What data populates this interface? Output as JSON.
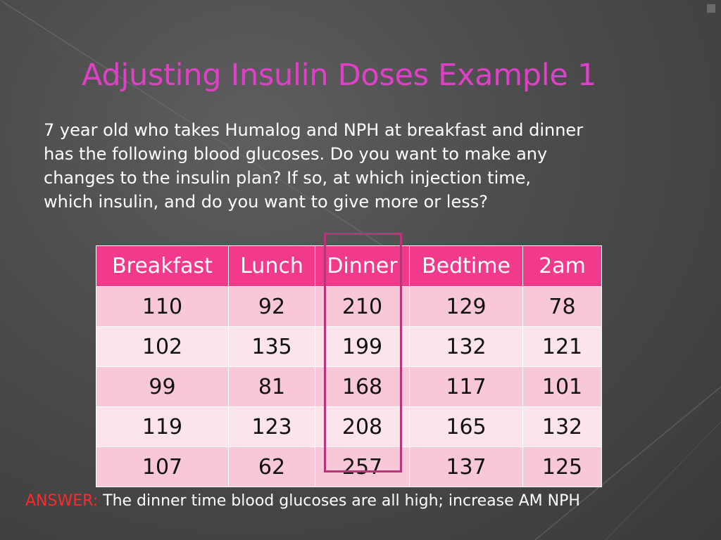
{
  "slide": {
    "title": "Adjusting Insulin Doses Example 1",
    "body_lines": [
      "7 year old who takes Humalog and NPH at breakfast and dinner",
      "has the following blood glucoses.  Do you want to make any",
      "changes to the  insulin plan? If so,  at  which injection time,",
      "which insulin, and do you want to give more or less?"
    ],
    "answer_label": "ANSWER:",
    "answer_text": " The dinner time blood glucoses are all high; increase AM NPH"
  },
  "table": {
    "headers": [
      "Breakfast",
      "Lunch",
      "Dinner",
      "Bedtime",
      "2am"
    ],
    "rows": [
      [
        "110",
        "92",
        "210",
        "129",
        "78"
      ],
      [
        "102",
        "135",
        "199",
        "132",
        "121"
      ],
      [
        "99",
        "81",
        "168",
        "117",
        "101"
      ],
      [
        "119",
        "123",
        "208",
        "165",
        "132"
      ],
      [
        "107",
        "62",
        "257",
        "137",
        "125"
      ]
    ]
  },
  "colors": {
    "title": "#e040c8",
    "header_bg": "#f23a8c",
    "row_odd": "#f8c7d9",
    "row_even": "#fbe4ec",
    "highlight_border": "#b83579",
    "answer_label": "#ff2a2a"
  }
}
